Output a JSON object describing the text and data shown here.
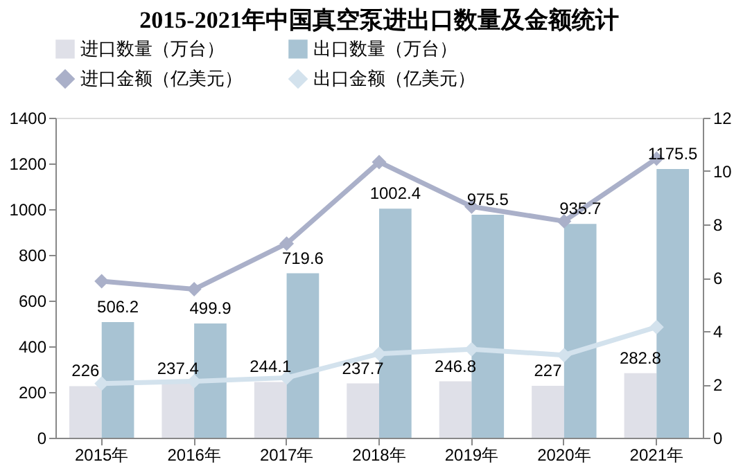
{
  "chart_data": {
    "type": "bar",
    "title": "2015-2021年中国真空泵进出口数量及金额统计",
    "categories": [
      "2015年",
      "2016年",
      "2017年",
      "2018年",
      "2019年",
      "2020年",
      "2021年"
    ],
    "series": [
      {
        "name": "进口数量（万台）",
        "color": "#dfe0e8",
        "values": [
          226,
          237.4,
          244.1,
          237.7,
          246.8,
          227,
          282.8
        ],
        "value_labels": [
          "226",
          "237.4",
          "244.1",
          "237.7",
          "246.8",
          "227",
          "282.8"
        ]
      },
      {
        "name": "出口数量（万台）",
        "color": "#a8c3d3",
        "values": [
          506.2,
          499.9,
          719.6,
          1002.4,
          975.5,
          935.7,
          1175.5
        ],
        "value_labels": [
          "506.2",
          "499.9",
          "719.6",
          "1002.4",
          "975.5",
          "935.7",
          "1175.5"
        ]
      },
      {
        "name": "进口金额（亿美元）",
        "color": "#aab0c9",
        "type": "line",
        "axis": "y2",
        "values": [
          5.87,
          5.57,
          7.28,
          10.34,
          8.67,
          8.12,
          10.47
        ]
      },
      {
        "name": "出口金额（亿美元）",
        "color": "#d3e2ed",
        "type": "line",
        "axis": "y2",
        "values": [
          2.03,
          2.12,
          2.25,
          3.15,
          3.32,
          3.1,
          4.15
        ]
      }
    ],
    "ylim": [
      0,
      1400
    ],
    "yticks": [
      0,
      200,
      400,
      600,
      800,
      1000,
      1200,
      1400
    ],
    "y2lim": [
      0,
      12
    ],
    "y2ticks": [
      0,
      2,
      4,
      6,
      8,
      10,
      12
    ],
    "grid": false,
    "legend": "top",
    "marker": "diamond"
  }
}
